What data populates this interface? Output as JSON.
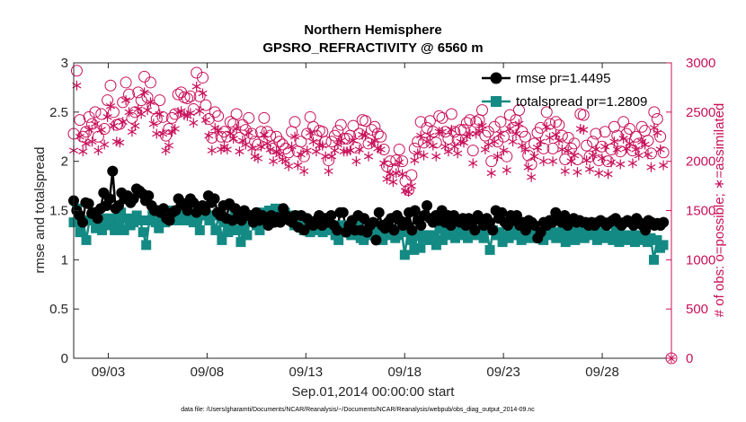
{
  "chart_data": {
    "type": "line",
    "title": "Northern Hemisphere",
    "subtitle": "GPSRO_REFRACTIVITY @ 6560 m",
    "xlabel": "Sep.01,2014 00:00:00 start",
    "ylabel": "rmse and totalspread",
    "ylabel_right": "# of obs: o=possible; ∗=assimilated",
    "x_ticks": [
      "09/03",
      "09/08",
      "09/13",
      "09/18",
      "09/23",
      "09/28"
    ],
    "y_ticks": [
      "0",
      "0.5",
      "1",
      "1.5",
      "2",
      "2.5",
      "3"
    ],
    "y2_ticks": [
      "0",
      "500",
      "1000",
      "1500",
      "2000",
      "2500",
      "3000"
    ],
    "ylim": [
      0,
      3
    ],
    "y2lim": [
      0,
      3000
    ],
    "xlim": [
      1.25,
      31.5
    ],
    "footnote": "data file: /Users/gharamti/Documents/NCAR/Reanalysis/~/Documents/NCAR/Reanalysis/webpub/obs_diag_output_2014-09.nc",
    "colors": {
      "rmse": "#000000",
      "totalspread": "#148a84",
      "obs": "#c8105a"
    },
    "series": [
      {
        "name": "rmse pr=1.4495",
        "axis": "left",
        "values": [
          1.6,
          1.5,
          1.45,
          1.38,
          1.58,
          1.57,
          1.47,
          1.48,
          1.42,
          1.52,
          1.68,
          1.55,
          1.62,
          1.9,
          1.52,
          1.55,
          1.68,
          1.62,
          1.65,
          1.58,
          1.62,
          1.72,
          1.7,
          1.67,
          1.6,
          1.65,
          1.55,
          1.5,
          1.5,
          1.48,
          1.52,
          1.42,
          1.4,
          1.48,
          1.5,
          1.62,
          1.58,
          1.55,
          1.5,
          1.62,
          1.58,
          1.48,
          1.52,
          1.55,
          1.5,
          1.65,
          1.58,
          1.62,
          1.48,
          1.45,
          1.55,
          1.42,
          1.57,
          1.4,
          1.52,
          1.45,
          1.4,
          1.5,
          1.45,
          1.45,
          1.38,
          1.48,
          1.4,
          1.45,
          1.42,
          1.35,
          1.45,
          1.38,
          1.43,
          1.38,
          1.52,
          1.45,
          1.4,
          1.38,
          1.45,
          1.33,
          1.45,
          1.3,
          1.42,
          1.38,
          1.35,
          1.4,
          1.45,
          1.35,
          1.42,
          1.38,
          1.45,
          1.35,
          1.3,
          1.48,
          1.48,
          1.28,
          1.35,
          1.4,
          1.3,
          1.45,
          1.3,
          1.42,
          1.28,
          1.35,
          1.38,
          1.2,
          1.48,
          1.35,
          1.32,
          1.38,
          1.42,
          1.3,
          1.45,
          1.4,
          1.35,
          1.38,
          1.48,
          1.3,
          1.5,
          1.4,
          1.35,
          1.45,
          1.55,
          1.42,
          1.38,
          1.45,
          1.4,
          1.5,
          1.38,
          1.45,
          1.35,
          1.45,
          1.4,
          1.38,
          1.42,
          1.35,
          1.42,
          1.38,
          1.3,
          1.45,
          1.4,
          1.35,
          1.42,
          1.38,
          1.3,
          1.5,
          1.42,
          1.48,
          1.38,
          1.35,
          1.45,
          1.4,
          1.45,
          1.35,
          1.38,
          1.3,
          1.4,
          1.38,
          1.35,
          1.22,
          1.28,
          1.38,
          1.35,
          1.4,
          1.38,
          1.48,
          1.42,
          1.38,
          1.45,
          1.35,
          1.4,
          1.42,
          1.38,
          1.4,
          1.38,
          1.38,
          1.35,
          1.38,
          1.35,
          1.38,
          1.4,
          1.38,
          1.35,
          1.38,
          1.4,
          1.42,
          1.38,
          1.35,
          1.38,
          1.4,
          1.38,
          1.35,
          1.42,
          1.38,
          1.35,
          1.3,
          1.4,
          1.38,
          1.35,
          1.37,
          1.35,
          1.38
        ]
      },
      {
        "name": "totalspread pr=1.2809",
        "axis": "left",
        "values": [
          1.38,
          1.52,
          1.28,
          1.4,
          1.2,
          1.4,
          1.48,
          1.32,
          1.4,
          1.3,
          1.42,
          1.35,
          1.42,
          1.3,
          1.38,
          1.48,
          1.3,
          1.42,
          1.35,
          1.38,
          1.45,
          1.4,
          1.28,
          1.15,
          1.4,
          1.48,
          1.38,
          1.32,
          1.45,
          1.38,
          1.5,
          1.42,
          1.4,
          1.45,
          1.48,
          1.4,
          1.42,
          1.45,
          1.38,
          1.4,
          1.3,
          1.48,
          1.45,
          1.4,
          1.45,
          1.3,
          1.45,
          1.2,
          1.38,
          1.28,
          1.3,
          1.45,
          1.3,
          1.18,
          1.35,
          1.25,
          1.42,
          1.45,
          1.35,
          1.3,
          1.48,
          1.4,
          1.5,
          1.48,
          1.52,
          1.45,
          1.5,
          1.48,
          1.45,
          1.42,
          1.35,
          1.45,
          1.4,
          1.3,
          1.32,
          1.28,
          1.38,
          1.3,
          1.35,
          1.28,
          1.38,
          1.32,
          1.3,
          1.25,
          1.2,
          1.35,
          1.28,
          1.32,
          1.25,
          1.3,
          1.35,
          1.22,
          1.2,
          1.3,
          1.35,
          1.25,
          1.28,
          1.35,
          1.2,
          1.3,
          1.25,
          1.28,
          1.22,
          1.25,
          1.3,
          1.05,
          1.28,
          1.2,
          1.1,
          1.25,
          1.12,
          1.22,
          1.25,
          1.2,
          1.25,
          1.15,
          1.32,
          1.2,
          1.28,
          1.25,
          1.3,
          1.22,
          1.28,
          1.25,
          1.3,
          1.22,
          1.28,
          1.3,
          1.25,
          1.28,
          1.22,
          1.3,
          1.1,
          1.3,
          1.25,
          1.28,
          1.18,
          1.25,
          1.22,
          1.28,
          1.3,
          1.25,
          1.2,
          1.32,
          1.28,
          1.22,
          1.3,
          1.25,
          1.28,
          1.2,
          1.25,
          1.3,
          1.28,
          1.22,
          1.25,
          1.3,
          1.18,
          1.25,
          1.3,
          1.2,
          1.25,
          1.28,
          1.22,
          1.3,
          1.25,
          1.28,
          1.2,
          1.25,
          1.28,
          1.22,
          1.25,
          1.2,
          1.3,
          1.18,
          1.25,
          1.22,
          1.2,
          1.25,
          1.18,
          1.22,
          1.25,
          1.2,
          1.18,
          1.22,
          1.0,
          1.2,
          1.12,
          1.15
        ]
      },
      {
        "name": "possible",
        "axis": "right",
        "values": [
          2280,
          2920,
          2420,
          2250,
          2300,
          2450,
          2380,
          2500,
          2250,
          2480,
          2330,
          2620,
          2770,
          2500,
          2370,
          2380,
          2600,
          2800,
          2680,
          2440,
          2500,
          2700,
          2620,
          2860,
          2650,
          2800,
          2540,
          2430,
          2620,
          2450,
          2260,
          2330,
          2440,
          2480,
          2680,
          2700,
          2650,
          2640,
          2660,
          2530,
          2900,
          2660,
          2850,
          2570,
          2430,
          2240,
          2500,
          2460,
          2250,
          2300,
          2250,
          2400,
          2380,
          2480,
          2240,
          2370,
          2320,
          2440,
          2280,
          2200,
          2170,
          2300,
          2440,
          2300,
          2260,
          2130,
          2250,
          2200,
          2170,
          2130,
          2090,
          2300,
          2400,
          2100,
          2200,
          2050,
          2280,
          2450,
          2350,
          2260,
          2310,
          2300,
          2200,
          2010,
          2200,
          2260,
          2310,
          2370,
          2230,
          2230,
          2260,
          2360,
          2140,
          2280,
          2420,
          2410,
          2180,
          2320,
          2350,
          2280,
          2250,
          2120,
          1950,
          2000,
          1920,
          2010,
          2120,
          2000,
          1800,
          1710,
          1860,
          2130,
          2200,
          2400,
          2190,
          2340,
          2410,
          2300,
          2190,
          2460,
          2440,
          2300,
          2230,
          2480,
          2300,
          2220,
          2320,
          2320,
          2390,
          2420,
          2110,
          2400,
          2420,
          2520,
          2260,
          2300,
          2000,
          2350,
          2200,
          2400,
          2250,
          2050,
          2470,
          2340,
          2420,
          2520,
          2300,
          2250,
          2060,
          1970,
          2180,
          2290,
          2340,
          2130,
          2500,
          2380,
          2130,
          2400,
          2370,
          2260,
          2020,
          2240,
          2130,
          2180,
          2020,
          2480,
          2470,
          2160,
          2050,
          2200,
          2280,
          2010,
          2150,
          2300,
          2000,
          2120,
          2350,
          2260,
          2100,
          2400,
          2280,
          2330,
          2110,
          2250,
          2180,
          2350,
          2310,
          2210,
          2080,
          2500,
          2430,
          2250,
          2090
        ]
      },
      {
        "name": "assimilated",
        "axis": "right",
        "values": [
          2110,
          2770,
          2250,
          2100,
          2180,
          2320,
          2200,
          2380,
          2110,
          2320,
          2170,
          2450,
          2560,
          2360,
          2200,
          2190,
          2400,
          2620,
          2500,
          2300,
          2360,
          2530,
          2480,
          2700,
          2520,
          2600,
          2380,
          2280,
          2480,
          2280,
          2110,
          2160,
          2300,
          2330,
          2500,
          2510,
          2470,
          2460,
          2490,
          2390,
          2760,
          2510,
          2690,
          2420,
          2260,
          2110,
          2340,
          2310,
          2120,
          2150,
          2120,
          2280,
          2230,
          2330,
          2100,
          2210,
          2170,
          2290,
          2130,
          2050,
          2030,
          2150,
          2270,
          2180,
          2120,
          2000,
          2100,
          2070,
          2020,
          2000,
          1950,
          2150,
          2250,
          1960,
          2070,
          1900,
          2110,
          2290,
          2200,
          2100,
          2160,
          2160,
          2050,
          1900,
          2050,
          2110,
          2170,
          2210,
          2100,
          2100,
          2110,
          2210,
          2000,
          2120,
          2270,
          2260,
          2050,
          2180,
          2210,
          2130,
          2120,
          1980,
          1820,
          1870,
          1790,
          1880,
          1990,
          1870,
          1700,
          1690,
          1750,
          2010,
          2080,
          2260,
          2060,
          2200,
          2260,
          2160,
          2050,
          2300,
          2300,
          2150,
          2100,
          2320,
          2150,
          2080,
          2200,
          2190,
          2250,
          2280,
          1980,
          2280,
          2310,
          2360,
          2120,
          2170,
          1880,
          2200,
          2050,
          2280,
          2110,
          1910,
          2330,
          2200,
          2280,
          2380,
          2160,
          2120,
          1940,
          1840,
          2050,
          2140,
          2200,
          2000,
          2350,
          2240,
          2000,
          2270,
          2210,
          2120,
          1900,
          2110,
          2000,
          2060,
          1890,
          2330,
          2320,
          2010,
          1920,
          2060,
          2120,
          1880,
          2030,
          2150,
          1870,
          1990,
          2200,
          2120,
          1970,
          2230,
          2130,
          2180,
          1980,
          2120,
          2060,
          2200,
          2170,
          2070,
          1940,
          2340,
          2290,
          2120,
          1960
        ]
      }
    ]
  }
}
